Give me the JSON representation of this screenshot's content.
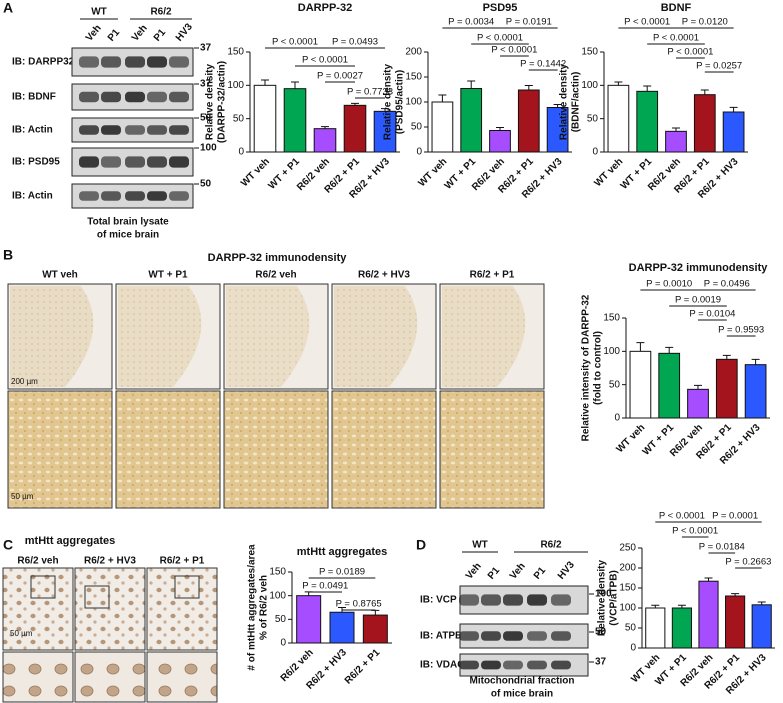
{
  "panel_labels": [
    "A",
    "B",
    "C",
    "D"
  ],
  "blot_a": {
    "groups": [
      "WT",
      "R6/2"
    ],
    "lanes": [
      "Veh",
      "P1",
      "Veh",
      "P1",
      "HV3"
    ],
    "rows": [
      "IB: DARPP32",
      "IB: BDNF",
      "IB: Actin",
      "IB: PSD95",
      "IB: Actin"
    ],
    "markers": [
      "37",
      "37",
      "50",
      "100",
      "50"
    ],
    "caption": [
      "Total brain lysate",
      "of mice brain"
    ]
  },
  "images_b": {
    "title": "DARPP-32 immunodensity",
    "columns": [
      "WT veh",
      "WT + P1",
      "R6/2 veh",
      "R6/2 + HV3",
      "R6/2 + P1"
    ],
    "scale_bars": [
      "200 µm",
      "50 µm"
    ]
  },
  "images_c": {
    "title": "mtHtt aggregates",
    "columns": [
      "R6/2 veh",
      "R6/2 + HV3",
      "R6/2 + P1"
    ],
    "scale_bar": "50 µm"
  },
  "blot_d": {
    "groups": [
      "WT",
      "R6/2"
    ],
    "lanes": [
      "Veh",
      "P1",
      "Veh",
      "P1",
      "HV3"
    ],
    "rows": [
      "IB: VCP",
      "IB: ATPB",
      "IB: VDAC"
    ],
    "markers": [
      "100",
      "50",
      "37"
    ],
    "caption": [
      "Mitochondrial fraction",
      "of mice brain"
    ]
  },
  "chart_data": [
    {
      "type": "bar",
      "title": "DARPP-32",
      "ylabel": [
        "Relative density",
        "(DARPP-32/actin)"
      ],
      "categories": [
        "WT veh",
        "WT + P1",
        "R6/2 veh",
        "R6/2 + P1",
        "R6/2 + HV3"
      ],
      "values": [
        100,
        95,
        35,
        70,
        61
      ],
      "errors": [
        8,
        10,
        3,
        3,
        4
      ],
      "colors": [
        "#ffffff",
        "#00a651",
        "#a64dff",
        "#a3141c",
        "#2b59ff"
      ],
      "ylim": [
        0,
        150
      ],
      "yticks": [
        0,
        50,
        100,
        150
      ],
      "annotations": [
        "P < 0.0001",
        "P = 0.0493",
        "P < 0.0001",
        "P = 0.0027",
        "P = 0.7733"
      ]
    },
    {
      "type": "bar",
      "title": "PSD95",
      "ylabel": [
        "Relative density",
        "(PSD95/actin)"
      ],
      "categories": [
        "WT veh",
        "WT + P1",
        "R6/2 veh",
        "R6/2 + P1",
        "R6/2 + HV3"
      ],
      "values": [
        100,
        127,
        43,
        124,
        89
      ],
      "errors": [
        14,
        15,
        6,
        9,
        6
      ],
      "colors": [
        "#ffffff",
        "#00a651",
        "#a64dff",
        "#a3141c",
        "#2b59ff"
      ],
      "ylim": [
        0,
        200
      ],
      "yticks": [
        0,
        50,
        100,
        150,
        200
      ],
      "annotations": [
        "P = 0.0034",
        "P = 0.0191",
        "P < 0.0001",
        "P < 0.0001",
        "P = 0.1442"
      ]
    },
    {
      "type": "bar",
      "title": "BDNF",
      "ylabel": [
        "Relative density",
        "(BDNF/actin)"
      ],
      "categories": [
        "WT veh",
        "WT + P1",
        "R6/2 veh",
        "R6/2 + P1",
        "R6/2 + HV3"
      ],
      "values": [
        100,
        91,
        31,
        86,
        60
      ],
      "errors": [
        5,
        8,
        5,
        7,
        7
      ],
      "colors": [
        "#ffffff",
        "#00a651",
        "#a64dff",
        "#a3141c",
        "#2b59ff"
      ],
      "ylim": [
        0,
        150
      ],
      "yticks": [
        0,
        50,
        100,
        150
      ],
      "annotations": [
        "P < 0.0001",
        "P = 0.0120",
        "P < 0.0001",
        "P < 0.0001",
        "P = 0.0257"
      ]
    },
    {
      "type": "bar",
      "title": "DARPP-32 immunodensity",
      "ylabel": [
        "Relative intensity of DARPP-32",
        "(fold to control)"
      ],
      "categories": [
        "WT veh",
        "WT + P1",
        "R6/2 veh",
        "R6/2 + P1",
        "R6/2 + HV3"
      ],
      "values": [
        100,
        97,
        43,
        88,
        80
      ],
      "errors": [
        13,
        9,
        6,
        6,
        8
      ],
      "colors": [
        "#ffffff",
        "#00a651",
        "#a64dff",
        "#a3141c",
        "#2b59ff"
      ],
      "ylim": [
        0,
        150
      ],
      "yticks": [
        0,
        50,
        100,
        150
      ],
      "annotations": [
        "P = 0.0010",
        "P = 0.0496",
        "P = 0.0019",
        "P = 0.0104",
        "P = 0.9593"
      ]
    },
    {
      "type": "bar",
      "title": "mtHtt aggregates",
      "ylabel": [
        "# of mtHtt aggregates/area",
        "% of R6/2 veh"
      ],
      "categories": [
        "R6/2 veh",
        "R6/2 + HV3",
        "R6/2 + P1"
      ],
      "values": [
        100,
        65,
        59
      ],
      "errors": [
        8,
        10,
        10
      ],
      "colors": [
        "#a64dff",
        "#2b59ff",
        "#a3141c"
      ],
      "ylim": [
        0,
        150
      ],
      "yticks": [
        0,
        50,
        100,
        150
      ],
      "annotations": [
        "P = 0.0189",
        "P = 0.0491",
        "P = 0.8765"
      ]
    },
    {
      "type": "bar",
      "ylabel": [
        "Relative density",
        "(VCP/aTPB)"
      ],
      "categories": [
        "WT veh",
        "WT + P1",
        "R6/2 veh",
        "R6/2 + P1",
        "R6/2 + HV3"
      ],
      "values": [
        100,
        100,
        167,
        130,
        108
      ],
      "errors": [
        7,
        7,
        8,
        6,
        7
      ],
      "colors": [
        "#ffffff",
        "#00a651",
        "#a64dff",
        "#a3141c",
        "#2b59ff"
      ],
      "ylim": [
        0,
        250
      ],
      "yticks": [
        0,
        50,
        100,
        150,
        200,
        250
      ],
      "annotations": [
        "P < 0.0001",
        "P = 0.0001",
        "P < 0.0001",
        "P = 0.0184",
        "P = 0.2663"
      ]
    }
  ]
}
